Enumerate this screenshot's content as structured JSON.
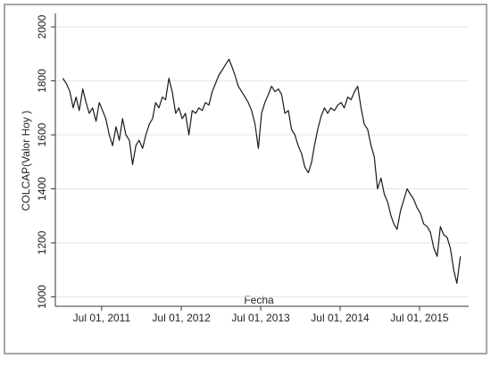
{
  "chart_data": {
    "type": "line",
    "y_label": "COLCAP(Valor Hoy )",
    "x_label": "Fecha",
    "x": [
      "2011-01-03",
      "2011-01-20",
      "2011-02-05",
      "2011-02-20",
      "2011-03-05",
      "2011-03-20",
      "2011-04-05",
      "2011-04-20",
      "2011-05-05",
      "2011-05-20",
      "2011-06-05",
      "2011-06-20",
      "2011-07-05",
      "2011-07-20",
      "2011-08-05",
      "2011-08-20",
      "2011-09-05",
      "2011-09-20",
      "2011-10-05",
      "2011-10-20",
      "2011-11-05",
      "2011-11-20",
      "2011-12-05",
      "2011-12-20",
      "2012-01-05",
      "2012-01-20",
      "2012-02-05",
      "2012-02-20",
      "2012-03-05",
      "2012-03-20",
      "2012-04-05",
      "2012-04-20",
      "2012-05-05",
      "2012-05-20",
      "2012-06-05",
      "2012-06-20",
      "2012-07-05",
      "2012-07-20",
      "2012-08-05",
      "2012-08-20",
      "2012-09-05",
      "2012-09-20",
      "2012-10-05",
      "2012-10-20",
      "2012-11-05",
      "2012-11-20",
      "2012-12-05",
      "2012-12-20",
      "2013-01-05",
      "2013-01-20",
      "2013-02-05",
      "2013-02-20",
      "2013-03-05",
      "2013-03-20",
      "2013-04-05",
      "2013-04-20",
      "2013-05-05",
      "2013-05-20",
      "2013-06-05",
      "2013-06-20",
      "2013-07-05",
      "2013-07-20",
      "2013-08-05",
      "2013-08-20",
      "2013-09-05",
      "2013-09-20",
      "2013-10-05",
      "2013-10-20",
      "2013-11-05",
      "2013-11-20",
      "2013-12-05",
      "2013-12-20",
      "2014-01-05",
      "2014-01-20",
      "2014-02-05",
      "2014-02-20",
      "2014-03-05",
      "2014-03-20",
      "2014-04-05",
      "2014-04-20",
      "2014-05-05",
      "2014-05-20",
      "2014-06-05",
      "2014-06-20",
      "2014-07-05",
      "2014-07-20",
      "2014-08-05",
      "2014-08-20",
      "2014-09-05",
      "2014-09-20",
      "2014-10-05",
      "2014-10-20",
      "2014-11-05",
      "2014-11-20",
      "2014-12-05",
      "2014-12-20",
      "2015-01-05",
      "2015-01-20",
      "2015-02-05",
      "2015-02-20",
      "2015-03-05",
      "2015-03-20",
      "2015-04-05",
      "2015-04-20",
      "2015-05-05",
      "2015-05-20",
      "2015-06-05",
      "2015-06-20",
      "2015-07-05",
      "2015-07-20",
      "2015-08-05",
      "2015-08-20",
      "2015-09-05",
      "2015-09-20",
      "2015-10-05",
      "2015-10-20",
      "2015-11-05",
      "2015-11-20",
      "2015-12-05",
      "2015-12-20",
      "2016-01-05"
    ],
    "series": [
      {
        "name": "COLCAP",
        "color": "#1a1a1a",
        "values": [
          1810,
          1790,
          1760,
          1700,
          1740,
          1690,
          1770,
          1720,
          1680,
          1700,
          1650,
          1720,
          1690,
          1660,
          1600,
          1560,
          1630,
          1580,
          1660,
          1600,
          1580,
          1490,
          1560,
          1580,
          1550,
          1600,
          1640,
          1660,
          1720,
          1700,
          1740,
          1730,
          1810,
          1760,
          1680,
          1700,
          1660,
          1680,
          1600,
          1690,
          1680,
          1700,
          1690,
          1720,
          1710,
          1760,
          1790,
          1820,
          1840,
          1860,
          1880,
          1850,
          1820,
          1780,
          1760,
          1740,
          1720,
          1690,
          1640,
          1550,
          1680,
          1720,
          1750,
          1780,
          1760,
          1770,
          1750,
          1680,
          1690,
          1620,
          1600,
          1560,
          1530,
          1480,
          1460,
          1500,
          1560,
          1620,
          1670,
          1700,
          1680,
          1700,
          1690,
          1710,
          1720,
          1700,
          1740,
          1730,
          1760,
          1780,
          1700,
          1640,
          1620,
          1560,
          1520,
          1400,
          1440,
          1380,
          1350,
          1300,
          1270,
          1250,
          1320,
          1360,
          1400,
          1380,
          1360,
          1330,
          1310,
          1270,
          1260,
          1240,
          1180,
          1150,
          1260,
          1230,
          1220,
          1180,
          1100,
          1050,
          1150
        ]
      }
    ],
    "xlim": [
      "2010-11-30",
      "2016-02-12"
    ],
    "xticks": [
      {
        "value": "2011-07-01",
        "label": "Jul 01, 2011"
      },
      {
        "value": "2012-07-01",
        "label": "Jul 01, 2012"
      },
      {
        "value": "2013-07-01",
        "label": "Jul 01, 2013"
      },
      {
        "value": "2014-07-01",
        "label": "Jul 01, 2014"
      },
      {
        "value": "2015-07-01",
        "label": "Jul 01, 2015"
      }
    ],
    "ylim": [
      965,
      2050
    ],
    "yticks": [
      1000,
      1200,
      1400,
      1600,
      1800,
      2000
    ],
    "grid": true
  }
}
